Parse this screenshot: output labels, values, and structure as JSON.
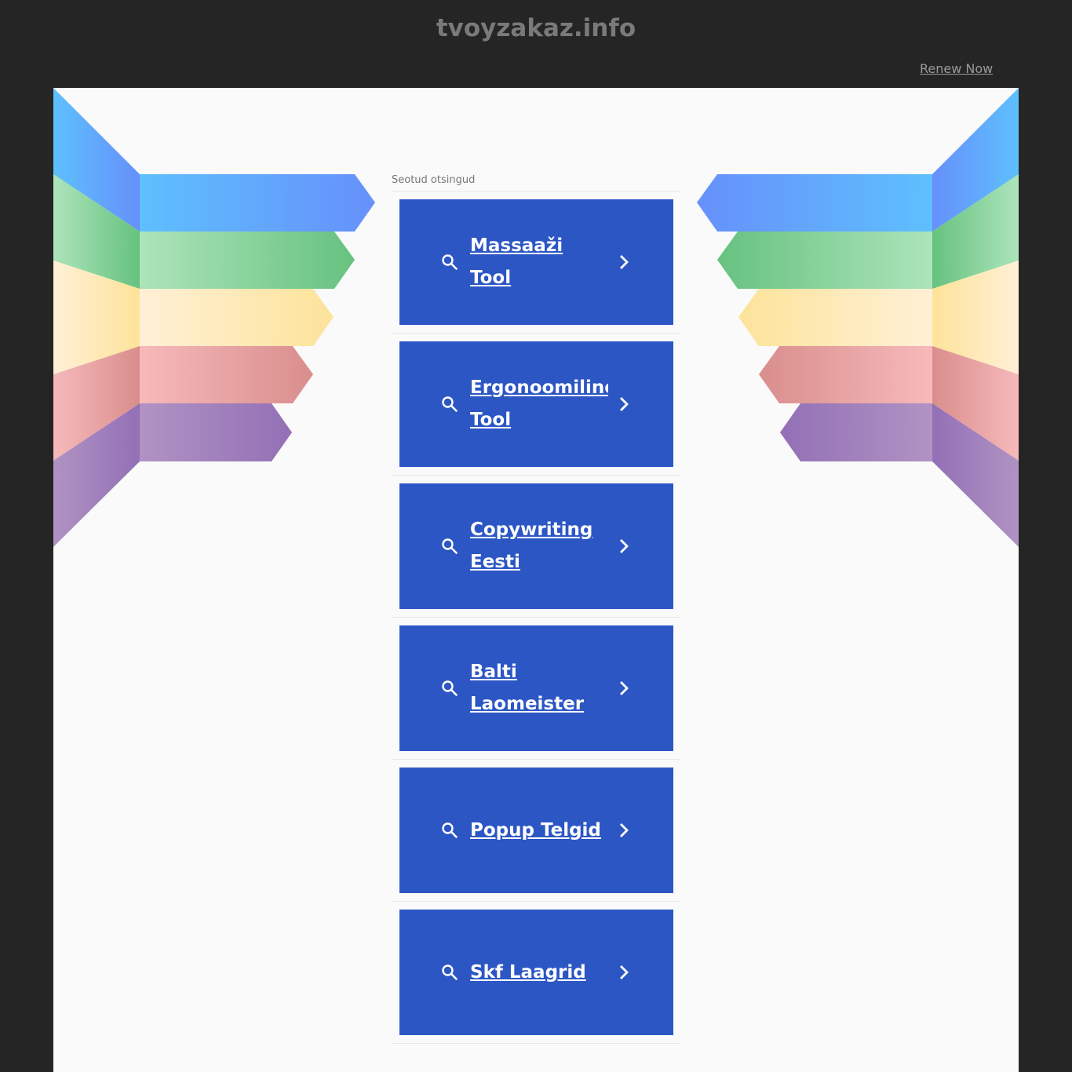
{
  "header": {
    "domain": "tvoyzakaz.info",
    "renew_label": "Renew Now"
  },
  "related": {
    "title": "Seotud otsingud",
    "items": [
      {
        "label": "Massaaži Tool"
      },
      {
        "label": "Ergonoomiline Tool"
      },
      {
        "label": "Copywriting Eesti"
      },
      {
        "label": "Balti Laomeister"
      },
      {
        "label": "Popup Telgid"
      },
      {
        "label": "Skf Laagrid"
      }
    ]
  },
  "colors": {
    "card": "#2c56c4",
    "background": "#252525",
    "panel": "#fafafa"
  }
}
